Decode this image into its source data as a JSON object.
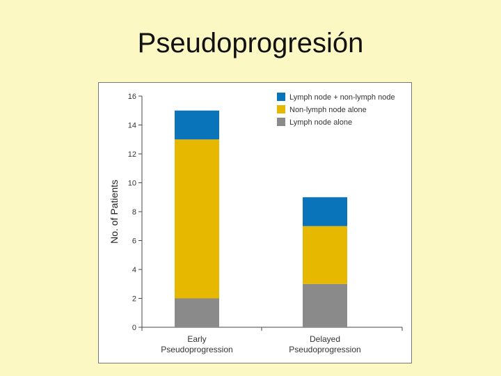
{
  "slide": {
    "title": "Pseudoprogresión"
  },
  "chart_data": {
    "type": "bar",
    "stacked": true,
    "title": "",
    "ylabel": "No. of Patients",
    "xlabel": "",
    "ylim": [
      0,
      16
    ],
    "yticks": [
      0,
      2,
      4,
      6,
      8,
      10,
      12,
      14,
      16
    ],
    "categories": [
      [
        "Early",
        "Pseudoprogression"
      ],
      [
        "Delayed",
        "Pseudoprogression"
      ]
    ],
    "series": [
      {
        "name": "Lymph node alone",
        "color": "#8a8a8a",
        "values": [
          2,
          3
        ]
      },
      {
        "name": "Non-lymph node alone",
        "color": "#e6b800",
        "values": [
          11,
          4
        ]
      },
      {
        "name": "Lymph node + non-lymph node",
        "color": "#0a74bb",
        "values": [
          2,
          2
        ]
      }
    ],
    "legend": {
      "position": "top-right",
      "order": [
        "Lymph node + non-lymph node",
        "Non-lymph node alone",
        "Lymph node alone"
      ]
    },
    "grid": false
  }
}
